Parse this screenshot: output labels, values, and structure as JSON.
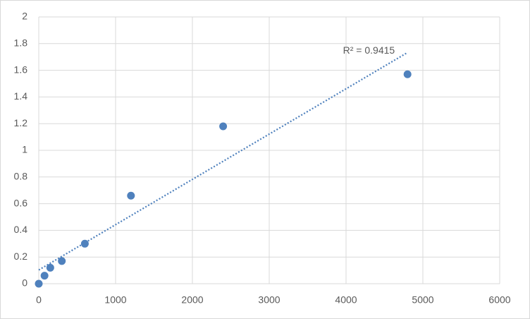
{
  "chart_data": {
    "type": "scatter",
    "series": [
      {
        "color": "#4f81bd",
        "x": [
          0,
          75,
          150,
          300,
          600,
          1200,
          2400,
          4800
        ],
        "values": [
          0,
          0.06,
          0.12,
          0.17,
          0.3,
          0.66,
          1.18,
          1.57
        ]
      }
    ],
    "trendline": {
      "color": "#4f81bd",
      "x": [
        0,
        4800
      ],
      "values": [
        0.103,
        1.733
      ],
      "label": "R² = 0.9415"
    },
    "xlim": [
      0,
      6000
    ],
    "xticks": [
      0,
      1000,
      2000,
      3000,
      4000,
      5000,
      6000
    ],
    "ylim": [
      0,
      2
    ],
    "yticks": [
      0,
      0.2,
      0.4,
      0.6,
      0.8,
      1,
      1.2,
      1.4,
      1.6,
      1.8,
      2
    ],
    "grid": true
  }
}
